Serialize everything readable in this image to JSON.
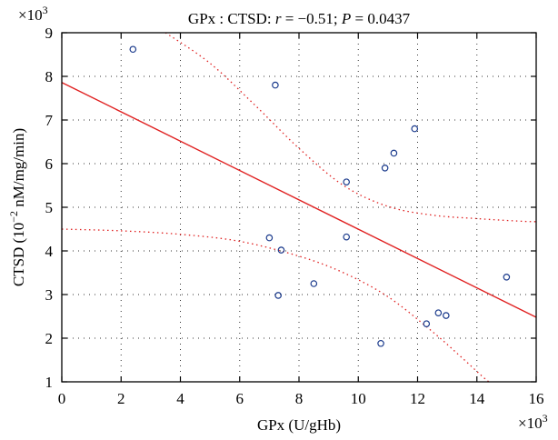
{
  "chart_data": {
    "type": "scatter",
    "title": "GPx : CTSD: r = −0.51; P = 0.0437",
    "title_parts": {
      "prefix": "GPx : CTSD: ",
      "r_symbol": "r",
      "r_value": " = −0.51; ",
      "p_symbol": "P",
      "p_value": " = 0.0437"
    },
    "xlabel": "GPx (U/gHb)",
    "ylabel": "CTSD (10",
    "ylabel_exponent": "−2",
    "ylabel_suffix": " nM/mg/min)",
    "x_multiplier_label": "×10",
    "y_multiplier_label": "×10",
    "multiplier_exponent": "3",
    "xlim": [
      0,
      16
    ],
    "ylim": [
      1,
      9
    ],
    "xticks": [
      0,
      2,
      4,
      6,
      8,
      10,
      12,
      14,
      16
    ],
    "yticks": [
      1,
      2,
      3,
      4,
      5,
      6,
      7,
      8,
      9
    ],
    "grid": true,
    "grid_style": "dotted",
    "points": [
      {
        "x": 2.4,
        "y": 8.62
      },
      {
        "x": 7.2,
        "y": 7.8
      },
      {
        "x": 11.9,
        "y": 6.8
      },
      {
        "x": 11.2,
        "y": 6.24
      },
      {
        "x": 10.9,
        "y": 5.9
      },
      {
        "x": 9.6,
        "y": 5.58
      },
      {
        "x": 7.0,
        "y": 4.3
      },
      {
        "x": 9.6,
        "y": 4.32
      },
      {
        "x": 7.4,
        "y": 4.02
      },
      {
        "x": 8.5,
        "y": 3.25
      },
      {
        "x": 7.3,
        "y": 2.98
      },
      {
        "x": 15.0,
        "y": 3.4
      },
      {
        "x": 12.7,
        "y": 2.58
      },
      {
        "x": 12.96,
        "y": 2.52
      },
      {
        "x": 12.3,
        "y": 2.33
      },
      {
        "x": 10.76,
        "y": 1.88
      }
    ],
    "fit_line": {
      "x": [
        0,
        16
      ],
      "y": [
        7.86,
        2.48
      ]
    },
    "confidence_upper": {
      "x": [
        3.5,
        5,
        6.5,
        8,
        9.5,
        11,
        12.5,
        14,
        15.5,
        16
      ],
      "y": [
        9.0,
        8.3,
        7.35,
        6.35,
        5.5,
        5.02,
        4.82,
        4.74,
        4.68,
        4.67
      ]
    },
    "confidence_lower": {
      "x": [
        0,
        2,
        4,
        6,
        8,
        9.5,
        11,
        12.5,
        13.5,
        14.4,
        15.0
      ],
      "y": [
        4.5,
        4.46,
        4.38,
        4.22,
        3.88,
        3.5,
        2.95,
        2.15,
        1.55,
        1.0,
        0.75
      ]
    },
    "colors": {
      "point": "#1a3a8c",
      "fit_line": "#e02020",
      "confidence": "#e02020",
      "grid": "#333333",
      "axis": "#000000"
    }
  }
}
